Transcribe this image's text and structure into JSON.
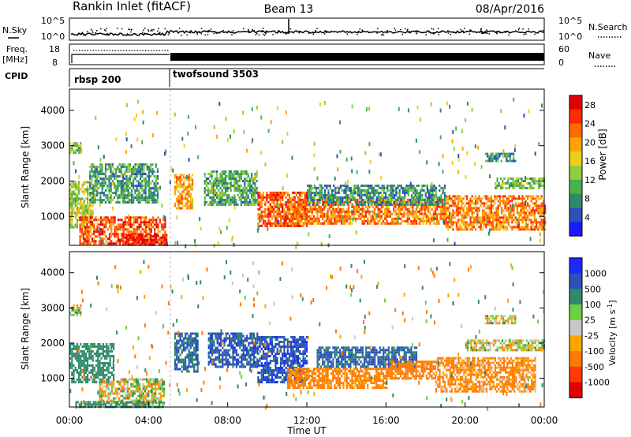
{
  "header": {
    "station": "Rankin Inlet (fitACF)",
    "beam": "Beam 13",
    "date": "08/Apr/2016"
  },
  "noise_panel": {
    "left_label": "N.Sky",
    "right_label": "N.Search",
    "left_ticks": [
      "10^5",
      "10^0"
    ],
    "right_ticks": [
      "10^5",
      "10^0"
    ]
  },
  "freq_panel": {
    "left_label_1": "Freq.",
    "left_label_2": "[MHz]",
    "right_label": "Nave",
    "left_ticks": [
      "18",
      "8"
    ],
    "right_ticks": [
      "60",
      "0"
    ]
  },
  "cpid": {
    "label": "CPID",
    "modes": [
      {
        "name": "rbsp 200",
        "start": "00:00",
        "end": "05:00"
      },
      {
        "name": "twofsound 3503",
        "start": "05:00",
        "end": "24:00"
      }
    ]
  },
  "chart_data": [
    {
      "type": "heatmap",
      "name": "power-panel",
      "ylabel": "Slant Range [km]",
      "xlim_hours": [
        0,
        24
      ],
      "ylim": [
        180,
        4600
      ],
      "yticks": [
        "1000",
        "2000",
        "3000",
        "4000"
      ],
      "colorbar": {
        "label": "Power [dB]",
        "ticks": [
          "4",
          "8",
          "12",
          "16",
          "20",
          "24",
          "28"
        ],
        "range": [
          0,
          30
        ],
        "colors": [
          "#1a1aff",
          "#2a52b8",
          "#2f8a6a",
          "#4caf50",
          "#8fcf3c",
          "#e8d020",
          "#ffa500",
          "#ff6a00",
          "#ff2a00",
          "#e00000"
        ]
      },
      "regions": [
        {
          "t0": 0.0,
          "t1": 1.2,
          "r0": 700,
          "r1": 2000,
          "value": 14
        },
        {
          "t0": 0.5,
          "t1": 4.8,
          "r0": 200,
          "r1": 1000,
          "value": 24
        },
        {
          "t0": 2.5,
          "t1": 4.9,
          "r0": 200,
          "r1": 500,
          "value": 27
        },
        {
          "t0": 1.0,
          "t1": 4.5,
          "r0": 1400,
          "r1": 2500,
          "value": 9
        },
        {
          "t0": 5.3,
          "t1": 6.2,
          "r0": 1200,
          "r1": 2200,
          "value": 20
        },
        {
          "t0": 6.8,
          "t1": 9.5,
          "r0": 1300,
          "r1": 2300,
          "value": 10
        },
        {
          "t0": 9.5,
          "t1": 12.0,
          "r0": 700,
          "r1": 1700,
          "value": 24
        },
        {
          "t0": 11.0,
          "t1": 19.0,
          "r0": 800,
          "r1": 1500,
          "value": 22
        },
        {
          "t0": 12.0,
          "t1": 19.0,
          "r0": 1300,
          "r1": 1900,
          "value": 8
        },
        {
          "t0": 19.0,
          "t1": 24.0,
          "r0": 600,
          "r1": 1600,
          "value": 22
        },
        {
          "t0": 21.5,
          "t1": 24.0,
          "r0": 1800,
          "r1": 2100,
          "value": 12
        },
        {
          "t0": 21.0,
          "t1": 22.5,
          "r0": 2550,
          "r1": 2800,
          "value": 8
        },
        {
          "t0": 0.0,
          "t1": 0.6,
          "r0": 2800,
          "r1": 3100,
          "value": 12
        }
      ]
    },
    {
      "type": "heatmap",
      "name": "velocity-panel",
      "ylabel": "Slant Range [km]",
      "xlabel": "Time UT",
      "xlim_hours": [
        0,
        24
      ],
      "ylim": [
        180,
        4600
      ],
      "xticks": [
        "00:00",
        "04:00",
        "08:00",
        "12:00",
        "16:00",
        "20:00",
        "00:00"
      ],
      "yticks": [
        "1000",
        "2000",
        "3000",
        "4000"
      ],
      "colorbar": {
        "label": "Velocity [m s",
        "label_sup": "-1",
        "ticks": [
          "1000",
          "500",
          "100",
          "25",
          "-25",
          "-100",
          "-500",
          "-1000"
        ],
        "colors": [
          "#1a2aff",
          "#2a52b8",
          "#2f8a6a",
          "#6cd040",
          "#c8c8c8",
          "#ffa500",
          "#ff7a00",
          "#ff3a00",
          "#e00000"
        ]
      },
      "regions": [
        {
          "t0": 0.0,
          "t1": 2.2,
          "r0": 900,
          "r1": 2000,
          "value": 300
        },
        {
          "t0": 1.5,
          "t1": 4.8,
          "r0": 300,
          "r1": 1000,
          "value": 0
        },
        {
          "t0": 0.3,
          "t1": 4.8,
          "r0": 180,
          "r1": 350,
          "value": 200
        },
        {
          "t0": 5.3,
          "t1": 6.5,
          "r0": 1200,
          "r1": 2300,
          "value": 600
        },
        {
          "t0": 7.0,
          "t1": 9.5,
          "r0": 1300,
          "r1": 2300,
          "value": 700
        },
        {
          "t0": 9.5,
          "t1": 12.0,
          "r0": 900,
          "r1": 2200,
          "value": 800
        },
        {
          "t0": 11.0,
          "t1": 16.0,
          "r0": 700,
          "r1": 1300,
          "value": -200
        },
        {
          "t0": 12.5,
          "t1": 17.5,
          "r0": 1300,
          "r1": 1900,
          "value": 600
        },
        {
          "t0": 16.0,
          "t1": 18.5,
          "r0": 1000,
          "r1": 1500,
          "value": -300
        },
        {
          "t0": 18.5,
          "t1": 23.5,
          "r0": 600,
          "r1": 1600,
          "value": -150
        },
        {
          "t0": 20.0,
          "t1": 24.0,
          "r0": 1800,
          "r1": 2100,
          "value": 0
        },
        {
          "t0": 21.0,
          "t1": 22.5,
          "r0": 2550,
          "r1": 2800,
          "value": 0
        },
        {
          "t0": 0.0,
          "t1": 0.6,
          "r0": 2800,
          "r1": 3100,
          "value": 0
        }
      ]
    }
  ]
}
